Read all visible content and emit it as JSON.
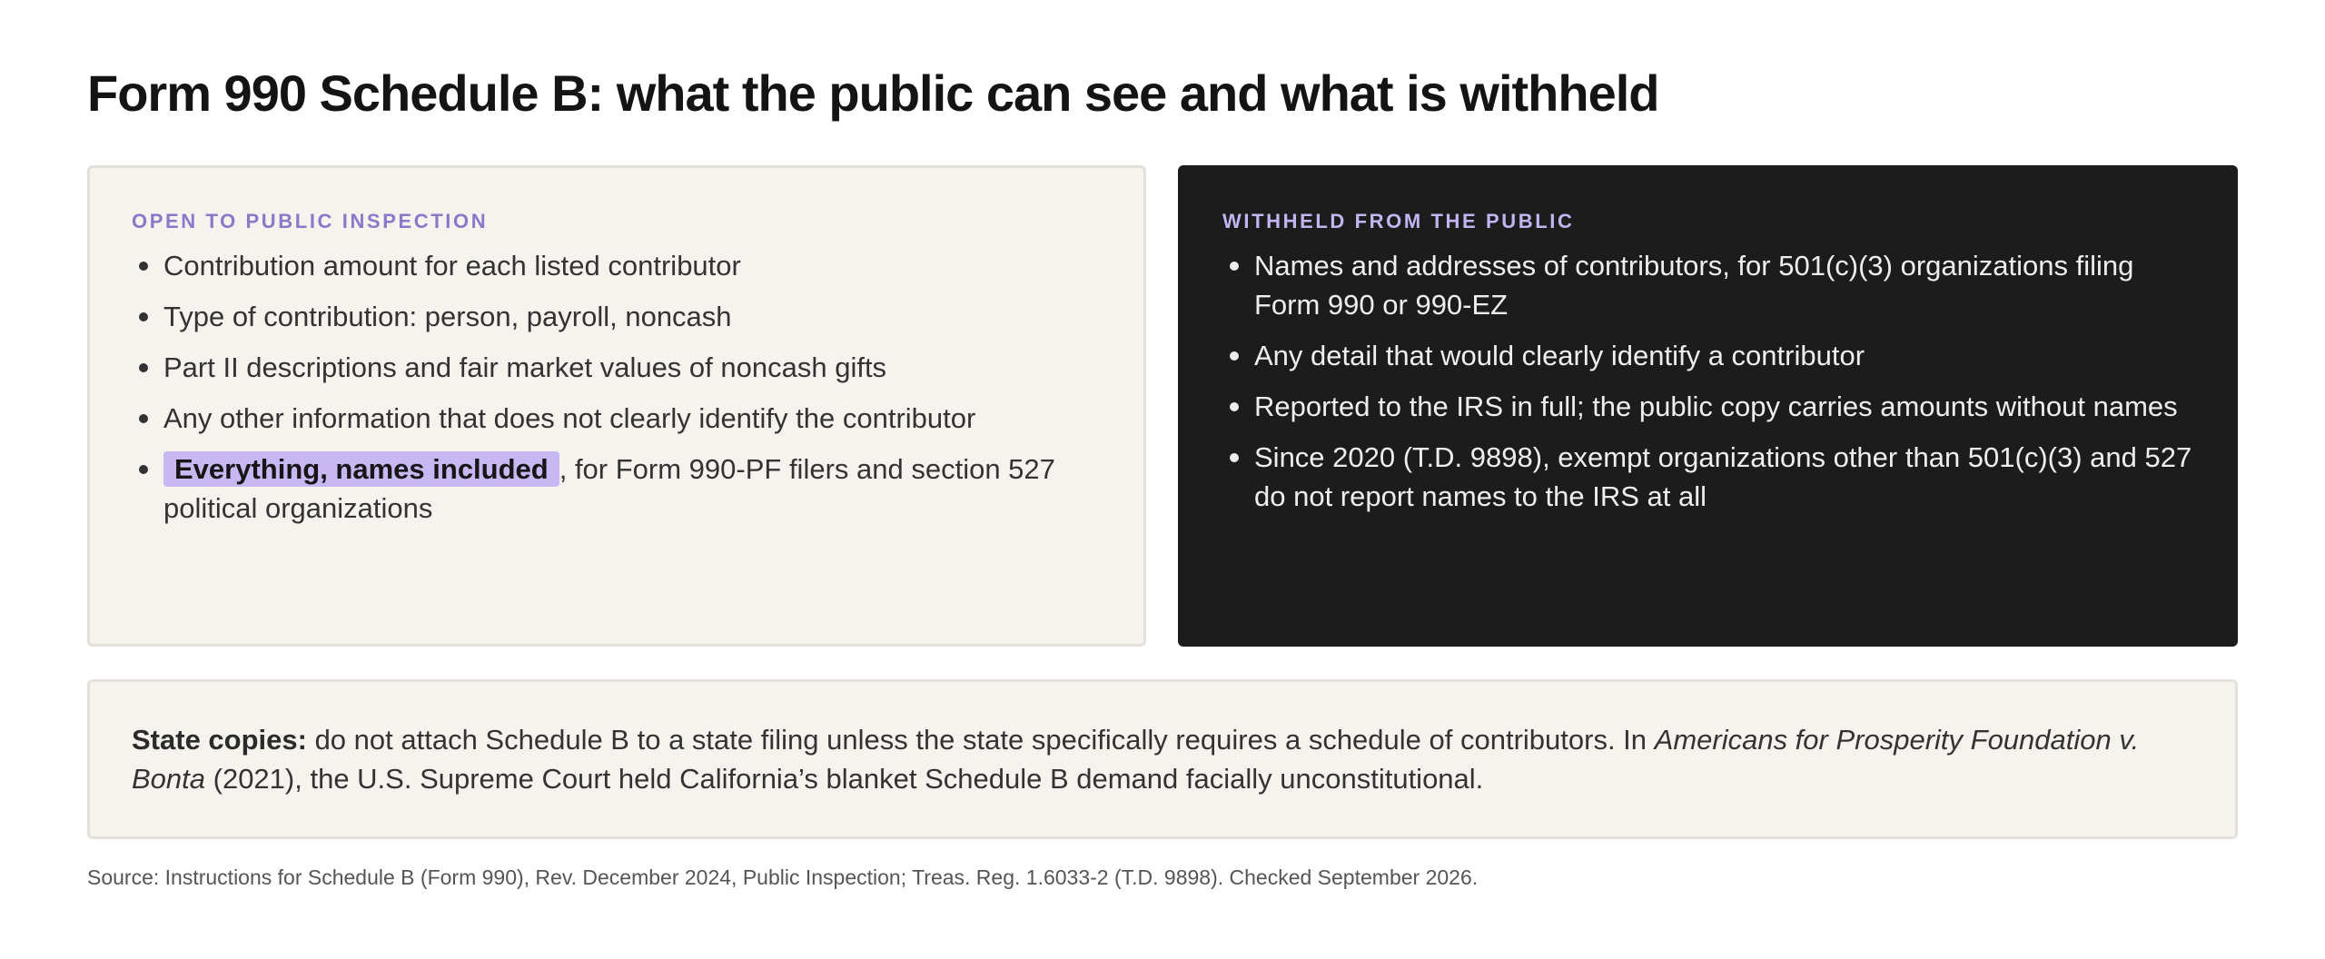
{
  "title": "Form 990 Schedule B: what the public can see and what is withheld",
  "public_panel": {
    "label": "OPEN TO PUBLIC INSPECTION",
    "items": [
      "Contribution amount for each listed contributor",
      "Type of contribution: person, payroll, noncash",
      "Part II descriptions and fair market values of noncash gifts",
      "Any other information that does not clearly identify the contributor"
    ],
    "highlight_item": {
      "highlight": "Everything, names included",
      "rest": ", for Form 990-PF filers and section 527 political organizations"
    }
  },
  "withheld_panel": {
    "label": "WITHHELD FROM THE PUBLIC",
    "items": [
      "Names and addresses of contributors, for 501(c)(3) organizations filing Form 990 or 990-EZ",
      "Any detail that would clearly identify a contributor",
      "Reported to the IRS in full; the public copy carries amounts without names",
      "Since 2020 (T.D. 9898), exempt organizations other than 501(c)(3) and 527 do not report names to the IRS at all"
    ]
  },
  "state_note": {
    "lead": "State copies:",
    "text_before": " do not attach Schedule B to a state filing unless the state specifically requires a schedule of contributors. In ",
    "case_name": "Americans for Prosperity Foundation v. Bonta",
    "text_after": " (2021), the U.S. Supreme Court held California’s blanket Schedule B demand facially unconstitutional."
  },
  "source": "Source: Instructions for Schedule B (Form 990), Rev. December 2024, Public Inspection; Treas. Reg. 1.6033-2 (T.D. 9898). Checked September 2026.",
  "colors": {
    "accent_purple": "#8a78c8",
    "highlight_purple": "#c7b8f4",
    "dark_panel": "#1c1c1c",
    "light_panel": "#f6f3ee"
  }
}
